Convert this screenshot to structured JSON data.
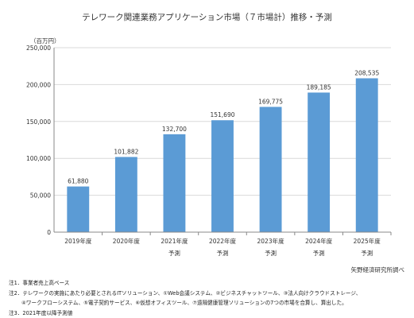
{
  "chart_data": {
    "type": "bar",
    "title": "テレワーク関連業務アプリケーション市場（７市場計）推移・予測",
    "unit_label": "（百万円）",
    "categories": [
      [
        "2019年度",
        ""
      ],
      [
        "2020年度",
        ""
      ],
      [
        "2021年度",
        "予測"
      ],
      [
        "2022年度",
        "予測"
      ],
      [
        "2023年度",
        "予測"
      ],
      [
        "2024年度",
        "予測"
      ],
      [
        "2025年度",
        "予測"
      ]
    ],
    "values": [
      61880,
      101882,
      132700,
      151690,
      169775,
      189185,
      208535
    ],
    "value_labels": [
      "61,880",
      "101,882",
      "132,700",
      "151,690",
      "169,775",
      "189,185",
      "208,535"
    ],
    "ylim": [
      0,
      250000
    ],
    "yticks": [
      "0",
      "50,000",
      "100,000",
      "150,000",
      "200,000",
      "250,000"
    ],
    "grid": true,
    "bar_color": "#5b9bd5",
    "source": "矢野経済研究所調べ"
  },
  "notes": [
    "注1．事業者売上高ベース",
    "注2．テレワークの実施にあたり必要とされるITソリューション、①Web会議システム、②ビジネスチャットツール、③法人向けクラウドストレージ、",
    "④ワークフローシステム、⑤電子契約サービス、⑥仮想オフィスツール、⑦遠隔健康管理ソリューションの7つの市場を合算し、算出した。",
    "注3．2021年度以降予測値"
  ]
}
